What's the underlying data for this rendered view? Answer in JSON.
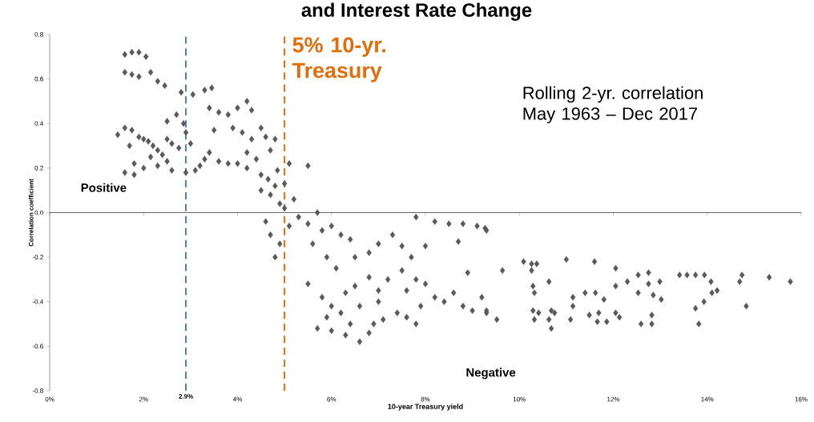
{
  "chart_data": {
    "type": "scatter",
    "title": "and Interest Rate Change",
    "xlabel": "10-year Treasury yield",
    "ylabel": "Correlation coefficient",
    "annotations": [
      "Positive",
      "Negative",
      "Rolling 2-yr. correlation May 1963 – Dec 2017"
    ],
    "color": "#595959",
    "marker": "diamond",
    "xlim": [
      0,
      16
    ],
    "ylim": [
      -0.8,
      0.8
    ],
    "xticks": [
      {
        "value": 0,
        "label": "0%"
      },
      {
        "value": 2,
        "label": "2%"
      },
      {
        "value": 4,
        "label": "4%"
      },
      {
        "value": 6,
        "label": "6%"
      },
      {
        "value": 8,
        "label": "8%"
      },
      {
        "value": 10,
        "label": "10%"
      },
      {
        "value": 12,
        "label": "12%"
      },
      {
        "value": 14,
        "label": "14%"
      },
      {
        "value": 16,
        "label": "16%"
      }
    ],
    "yticks": [
      -0.8,
      -0.6,
      -0.4,
      -0.2,
      {
        "value": 0,
        "label": "0.0"
      },
      0.2,
      0.4,
      0.6,
      0.8
    ],
    "ref_lines": [
      {
        "axis": "x",
        "value": 2.9,
        "label": "2.9%",
        "color": "#4f81bd",
        "line_style": "dashed"
      },
      {
        "axis": "x",
        "value": 5,
        "label": "5% 10-yr. Treasury",
        "color": "#e46c0a",
        "line_style": "dashed"
      }
    ],
    "x": [
      1.6,
      1.75,
      1.9,
      2.05,
      1.6,
      1.75,
      1.9,
      2.15,
      2.3,
      2.45,
      2.8,
      3.05,
      3.3,
      3.45,
      2.7,
      2.5,
      2.85,
      1.45,
      1.6,
      1.75,
      1.9,
      2.0,
      2.1,
      2.2,
      2.3,
      2.4,
      2.15,
      1.7,
      1.8,
      2.0,
      1.6,
      1.8,
      2.3,
      2.5,
      2.6,
      2.75,
      3.0,
      2.5,
      2.6,
      2.9,
      3.1,
      2.9,
      3.4,
      3.6,
      3.8,
      4.0,
      4.2,
      4.3,
      3.5,
      3.9,
      4.1,
      4.3,
      4.5,
      4.6,
      3.4,
      3.6,
      3.8,
      4.0,
      3.3,
      3.2,
      4.2,
      4.4,
      4.2,
      4.5,
      4.65,
      4.8,
      4.7,
      4.5,
      4.85,
      5.1,
      5.5,
      4.9,
      5.0,
      5.2,
      4.7,
      5.0,
      4.8,
      4.6,
      4.7,
      4.9,
      4.8,
      5.1,
      5.3,
      5.5,
      5.7,
      5.8,
      5.6,
      6.0,
      6.2,
      6.4,
      5.9,
      6.1,
      6.5,
      6.8,
      7.0,
      7.3,
      7.5,
      7.7,
      8.0,
      8.2,
      7.8,
      8.5,
      8.8,
      9.1,
      9.3,
      8.7,
      5.5,
      5.8,
      6.0,
      6.3,
      6.5,
      6.8,
      7.0,
      7.2,
      7.5,
      7.8,
      7.6,
      8.0,
      8.2,
      8.4,
      8.6,
      8.8,
      9.0,
      9.3,
      9.2,
      8.9,
      7.9,
      7.4,
      7.0,
      6.6,
      6.2,
      5.9,
      5.7,
      6.0,
      6.3,
      6.6,
      6.8,
      7.1,
      6.9,
      6.4,
      7.6,
      7.8,
      10.09,
      10.26,
      10.37,
      10.26,
      9.64,
      11.0,
      11.6,
      12.05,
      10.29,
      10.32,
      10.63,
      12.05,
      12.3,
      12.53,
      12.75,
      12.75,
      12.99,
      12.53,
      12.85,
      13.02,
      13.41,
      13.57,
      13.75,
      13.94,
      14.08,
      14.1,
      14.21,
      13.93,
      13.75,
      13.82,
      14.74,
      14.69,
      14.83,
      15.32,
      15.77,
      11.14,
      11.14,
      11.09,
      11.4,
      11.62,
      11.8,
      11.49,
      11.69,
      11.66,
      11.86,
      12.05,
      12.13,
      12.59,
      12.82,
      12.82,
      10.29,
      10.41,
      10.68,
      10.75,
      10.68,
      10.32,
      10.63,
      9.3,
      9.52,
      9.27
    ],
    "values": [
      0.71,
      0.72,
      0.72,
      0.7,
      0.63,
      0.62,
      0.61,
      0.63,
      0.59,
      0.57,
      0.54,
      0.53,
      0.55,
      0.56,
      0.44,
      0.41,
      0.4,
      0.35,
      0.38,
      0.37,
      0.34,
      0.33,
      0.32,
      0.3,
      0.28,
      0.26,
      0.25,
      0.3,
      0.22,
      0.2,
      0.18,
      0.17,
      0.21,
      0.33,
      0.31,
      0.29,
      0.31,
      0.23,
      0.19,
      0.18,
      0.19,
      0.36,
      0.47,
      0.45,
      0.44,
      0.47,
      0.5,
      0.46,
      0.37,
      0.38,
      0.36,
      0.33,
      0.38,
      0.34,
      0.27,
      0.23,
      0.22,
      0.22,
      0.24,
      0.21,
      0.27,
      0.24,
      0.2,
      0.17,
      0.15,
      0.12,
      0.08,
      0.1,
      0.19,
      0.22,
      0.21,
      0.04,
      0.02,
      0.06,
      0.28,
      0.13,
      0.33,
      -0.04,
      -0.1,
      -0.14,
      -0.2,
      -0.06,
      -0.02,
      -0.05,
      0.0,
      -0.08,
      -0.14,
      -0.06,
      -0.1,
      -0.12,
      -0.2,
      -0.25,
      -0.2,
      -0.18,
      -0.14,
      -0.1,
      -0.15,
      -0.2,
      -0.15,
      -0.04,
      -0.02,
      -0.05,
      -0.05,
      -0.06,
      -0.08,
      -0.13,
      -0.32,
      -0.38,
      -0.42,
      -0.36,
      -0.33,
      -0.29,
      -0.35,
      -0.3,
      -0.26,
      -0.3,
      -0.35,
      -0.32,
      -0.38,
      -0.4,
      -0.36,
      -0.42,
      -0.44,
      -0.45,
      -0.38,
      -0.27,
      -0.42,
      -0.45,
      -0.4,
      -0.42,
      -0.45,
      -0.47,
      -0.52,
      -0.53,
      -0.55,
      -0.58,
      -0.54,
      -0.48,
      -0.5,
      -0.5,
      -0.47,
      -0.5,
      -0.22,
      -0.23,
      -0.23,
      -0.26,
      -0.26,
      -0.21,
      -0.22,
      -0.25,
      -0.33,
      -0.36,
      -0.31,
      -0.33,
      -0.31,
      -0.28,
      -0.27,
      -0.32,
      -0.31,
      -0.36,
      -0.37,
      -0.39,
      -0.28,
      -0.28,
      -0.28,
      -0.28,
      -0.31,
      -0.36,
      -0.35,
      -0.4,
      -0.43,
      -0.5,
      -0.28,
      -0.31,
      -0.42,
      -0.29,
      -0.31,
      -0.38,
      -0.42,
      -0.48,
      -0.36,
      -0.36,
      -0.39,
      -0.46,
      -0.45,
      -0.49,
      -0.49,
      -0.45,
      -0.47,
      -0.5,
      -0.5,
      -0.46,
      -0.44,
      -0.45,
      -0.44,
      -0.45,
      -0.52,
      -0.48,
      -0.48,
      -0.44,
      -0.48,
      -0.07
    ]
  }
}
